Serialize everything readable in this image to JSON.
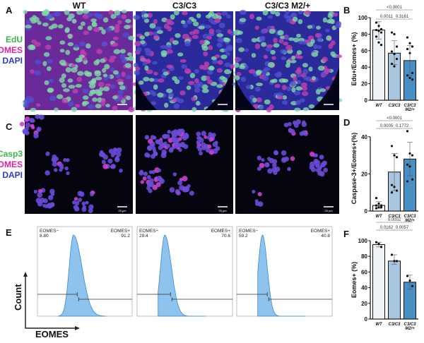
{
  "panels": {
    "A": "A",
    "B": "B",
    "C": "C",
    "D": "D",
    "E": "E",
    "F": "F"
  },
  "columns": [
    "WT",
    "C3/C3",
    "C3/C3 M2/+"
  ],
  "rowA_stain": [
    {
      "text": "EdU",
      "color": "#3cb44b"
    },
    {
      "text": "EOMES",
      "color": "#e020a0"
    },
    {
      "text": "DAPI",
      "color": "#2a3cc8"
    }
  ],
  "rowC_stain": [
    {
      "text": "Casp3",
      "color": "#3cb44b"
    },
    {
      "text": "EOMES",
      "color": "#e020a0"
    },
    {
      "text": "DAPI",
      "color": "#2a3cc8"
    }
  ],
  "scalebar": [
    "25 µm",
    "25 µm",
    "25 µm"
  ],
  "flow": {
    "xlabel": "EOMES",
    "ylabel": "Count",
    "neg_label": "EOMES−",
    "pos_label": "EOMES+",
    "samples": [
      {
        "neg": "8.80",
        "pos": "91.2"
      },
      {
        "neg": "29.4",
        "pos": "70.6"
      },
      {
        "neg": "59.2",
        "pos": "40.8"
      }
    ]
  },
  "colors": {
    "bar": [
      "#eef2f7",
      "#a9c6e0",
      "#4a8fc4"
    ],
    "hist": "#8ec3ee"
  },
  "chart_data": [
    {
      "panel": "B",
      "type": "bar",
      "ylabel": "Edu+/Eomes+ (%)",
      "ylim": [
        0,
        100
      ],
      "yticks": [
        0,
        20,
        40,
        60,
        80,
        100
      ],
      "categories": [
        "WT",
        "C3/C3",
        "C3/C3 M2/+"
      ],
      "values": [
        85,
        57,
        48
      ],
      "err_low": [
        74,
        43,
        30
      ],
      "err_high": [
        95,
        72,
        66
      ],
      "points": [
        [
          94,
          90,
          86,
          85,
          84,
          82,
          77,
          70,
          67
        ],
        [
          82,
          80,
          65,
          59,
          56,
          50,
          44,
          41
        ],
        [
          76,
          69,
          65,
          62,
          57,
          33,
          30,
          27,
          25
        ]
      ],
      "comparisons": [
        {
          "pair": [
            0,
            2
          ],
          "p": "<0.0001"
        },
        {
          "pair": [
            0,
            1
          ],
          "p": "0.0011"
        },
        {
          "pair": [
            1,
            2
          ],
          "p": "0.3161"
        }
      ]
    },
    {
      "panel": "D",
      "type": "bar",
      "ylabel": "Caspase-3+/Eomes+(%)",
      "ylim": [
        0,
        50
      ],
      "yticks": [
        0,
        20,
        40
      ],
      "categories": [
        "WT",
        "C3/C3",
        "C3/C3 M2/+"
      ],
      "values": [
        3,
        21,
        28
      ],
      "err_low": [
        1.5,
        11,
        19
      ],
      "err_high": [
        5,
        31,
        37
      ],
      "points": [
        [
          7,
          4,
          3,
          3,
          2,
          2,
          1.5
        ],
        [
          35,
          30,
          29,
          14,
          13,
          11,
          10
        ],
        [
          43,
          31,
          30,
          25,
          24,
          17,
          16
        ]
      ],
      "comparisons": [
        {
          "pair": [
            0,
            2
          ],
          "p": "<0.0001"
        },
        {
          "pair": [
            0,
            1
          ],
          "p": "0.0005"
        },
        {
          "pair": [
            1,
            2
          ],
          "p": "0.1772"
        }
      ]
    },
    {
      "panel": "F",
      "type": "bar",
      "ylabel": "Eomes+ (%)",
      "ylim": [
        0,
        100
      ],
      "yticks": [
        0,
        20,
        40,
        60,
        80,
        100
      ],
      "categories": [
        "WT",
        "C3/C3",
        "C3/C3 M2/+"
      ],
      "values": [
        95,
        74,
        47
      ],
      "err_low": [
        92,
        70,
        38
      ],
      "err_high": [
        98,
        82,
        56
      ],
      "points": [
        [
          98,
          96,
          92
        ],
        [
          82,
          74,
          74
        ],
        [
          55,
          49,
          42
        ]
      ],
      "comparisons": [
        {
          "pair": [
            0,
            2
          ],
          "p": "0.0002"
        },
        {
          "pair": [
            0,
            1
          ],
          "p": "0.0162"
        },
        {
          "pair": [
            1,
            2
          ],
          "p": "0.0057"
        }
      ]
    }
  ]
}
